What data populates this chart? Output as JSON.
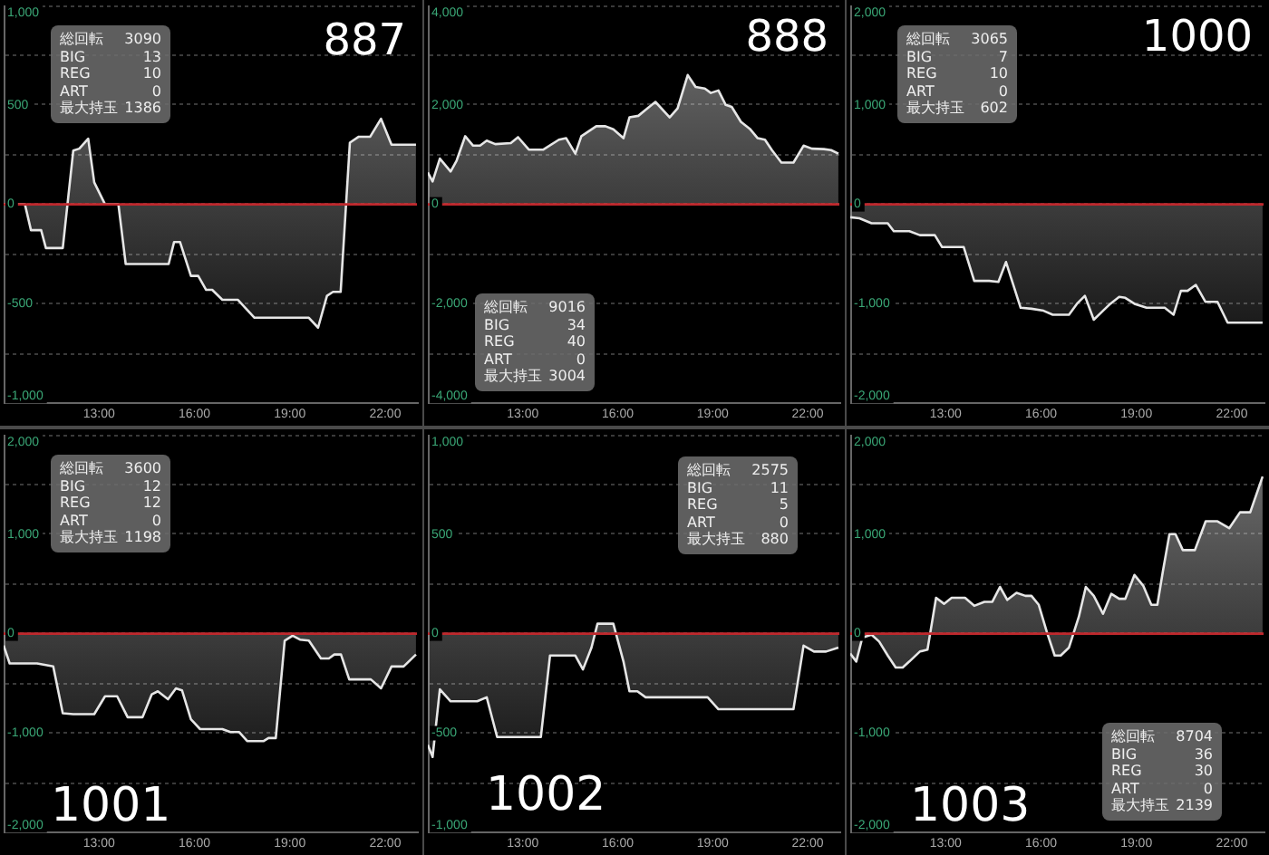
{
  "chart_data": [
    {
      "type": "area",
      "title": "887",
      "color": "#e6e6e6",
      "grid": "y",
      "xlim": [
        10,
        23
      ],
      "xticks": [
        {
          "value": 13,
          "label": "13:00"
        },
        {
          "value": 16,
          "label": "16:00"
        },
        {
          "value": 19,
          "label": "19:00"
        },
        {
          "value": 22,
          "label": "22:00"
        }
      ],
      "ylim": [
        -1000,
        1000
      ],
      "yticks": [
        {
          "value": -1000,
          "label": "-1,000"
        },
        {
          "value": -750,
          "label": null
        },
        -500,
        {
          "value": -250,
          "label": null
        },
        0,
        {
          "value": 250,
          "label": null
        },
        500,
        {
          "value": 750,
          "label": null
        },
        {
          "value": 1000,
          "label": "1,000"
        }
      ],
      "ref_lines": [
        {
          "axis": "y",
          "value": 0,
          "color": "#c0282d"
        }
      ],
      "annotations": [
        "総回転 3090",
        "BIG 13",
        "REG 10",
        "ART 0",
        "最大持玉 1386"
      ],
      "x": [
        10,
        10.67,
        10.86,
        11.18,
        11.33,
        11.86,
        12.19,
        12.38,
        12.66,
        12.85,
        13.19,
        13.61,
        13.84,
        15.19,
        15.36,
        15.55,
        15.89,
        16.12,
        16.37,
        16.56,
        16.88,
        17.37,
        17.89,
        19.6,
        19.89,
        20.17,
        20.36,
        20.6,
        20.89,
        21.17,
        21.53,
        21.87,
        22.2,
        22.97
      ],
      "values": [
        0,
        0,
        -130,
        -130,
        -220,
        -220,
        270,
        280,
        330,
        110,
        0,
        0,
        -300,
        -300,
        -190,
        -190,
        -360,
        -360,
        -430,
        -430,
        -480,
        -480,
        -570,
        -570,
        -620,
        -460,
        -440,
        -440,
        310,
        340,
        340,
        430,
        300,
        300
      ]
    },
    {
      "type": "area",
      "title": "888",
      "color": "#e6e6e6",
      "grid": "y",
      "xlim": [
        10,
        23
      ],
      "xticks": [
        {
          "value": 13,
          "label": "13:00"
        },
        {
          "value": 16,
          "label": "16:00"
        },
        {
          "value": 19,
          "label": "19:00"
        },
        {
          "value": 22,
          "label": "22:00"
        }
      ],
      "ylim": [
        -4000,
        4000
      ],
      "yticks": [
        {
          "value": -4000,
          "label": "-4,000"
        },
        {
          "value": -3000,
          "label": null
        },
        {
          "value": -2000,
          "label": "-2,000"
        },
        {
          "value": -1000,
          "label": null
        },
        0,
        {
          "value": 1000,
          "label": null
        },
        {
          "value": 2000,
          "label": "2,000"
        },
        {
          "value": 3000,
          "label": null
        },
        {
          "value": 4000,
          "label": "4,000"
        }
      ],
      "ref_lines": [
        {
          "axis": "y",
          "value": 0,
          "color": "#c0282d"
        }
      ],
      "annotations": [
        "総回転 9016",
        "BIG 34",
        "REG 40",
        "ART 0",
        "最大持玉 3004"
      ],
      "x": [
        10,
        10.15,
        10.38,
        10.72,
        10.91,
        11.18,
        11.43,
        11.65,
        11.86,
        12.13,
        12.62,
        12.85,
        13.19,
        13.65,
        14.14,
        14.37,
        14.66,
        14.85,
        15.32,
        15.61,
        15.86,
        16.18,
        16.37,
        16.65,
        16.88,
        17.19,
        17.64,
        17.89,
        18.21,
        18.46,
        18.75,
        18.94,
        19.18,
        19.41,
        19.6,
        19.89,
        20.17,
        20.42,
        20.65,
        20.87,
        21.17,
        21.55,
        21.87,
        22.13,
        22.51,
        22.74,
        22.97
      ],
      "values": [
        640,
        460,
        920,
        660,
        880,
        1370,
        1180,
        1180,
        1280,
        1210,
        1230,
        1350,
        1100,
        1100,
        1300,
        1330,
        1020,
        1370,
        1570,
        1570,
        1510,
        1330,
        1750,
        1780,
        1900,
        2060,
        1750,
        1930,
        2600,
        2360,
        2330,
        2240,
        2290,
        2000,
        1960,
        1660,
        1520,
        1330,
        1300,
        1090,
        840,
        840,
        1180,
        1120,
        1110,
        1090,
        1020
      ]
    },
    {
      "type": "area",
      "title": "1000",
      "color": "#e6e6e6",
      "grid": "y",
      "xlim": [
        10,
        23
      ],
      "xticks": [
        {
          "value": 13,
          "label": "13:00"
        },
        {
          "value": 16,
          "label": "16:00"
        },
        {
          "value": 19,
          "label": "19:00"
        },
        {
          "value": 22,
          "label": "22:00"
        }
      ],
      "ylim": [
        -2000,
        2000
      ],
      "yticks": [
        {
          "value": -2000,
          "label": "-2,000"
        },
        {
          "value": -1500,
          "label": null
        },
        {
          "value": -1000,
          "label": "-1,000"
        },
        {
          "value": -500,
          "label": null
        },
        0,
        {
          "value": 500,
          "label": null
        },
        {
          "value": 1000,
          "label": "1,000"
        },
        {
          "value": 1500,
          "label": null
        },
        {
          "value": 2000,
          "label": "2,000"
        }
      ],
      "ref_lines": [
        {
          "axis": "y",
          "value": 0,
          "color": "#c0282d"
        }
      ],
      "annotations": [
        "総回転 3065",
        "BIG 7",
        "REG 10",
        "ART 0",
        "最大持玉 602"
      ],
      "x": [
        10,
        10.29,
        10.67,
        11.18,
        11.37,
        11.86,
        12.19,
        12.66,
        12.89,
        13.57,
        13.9,
        14.37,
        14.66,
        14.9,
        15.36,
        15.7,
        16.08,
        16.37,
        16.88,
        17.13,
        17.38,
        17.66,
        17.95,
        18.18,
        18.46,
        18.65,
        18.94,
        19.32,
        19.89,
        20.17,
        20.4,
        20.61,
        20.87,
        21.17,
        21.55,
        21.87,
        22.97
      ],
      "values": [
        -130,
        -140,
        -190,
        -190,
        -270,
        -270,
        -310,
        -310,
        -430,
        -430,
        -770,
        -770,
        -780,
        -580,
        -1040,
        -1050,
        -1070,
        -1110,
        -1110,
        -1000,
        -920,
        -1160,
        -1070,
        -1000,
        -930,
        -940,
        -1000,
        -1040,
        -1040,
        -1110,
        -870,
        -870,
        -810,
        -980,
        -980,
        -1190,
        -1190
      ]
    },
    {
      "type": "area",
      "title": "1001",
      "color": "#e6e6e6",
      "grid": "y",
      "xlim": [
        10,
        23
      ],
      "xticks": [
        {
          "value": 13,
          "label": "13:00"
        },
        {
          "value": 16,
          "label": "16:00"
        },
        {
          "value": 19,
          "label": "19:00"
        },
        {
          "value": 22,
          "label": "22:00"
        }
      ],
      "ylim": [
        -2000,
        2000
      ],
      "yticks": [
        {
          "value": -2000,
          "label": "-2,000"
        },
        {
          "value": -1500,
          "label": null
        },
        {
          "value": -1000,
          "label": "-1,000"
        },
        {
          "value": -500,
          "label": null
        },
        0,
        {
          "value": 500,
          "label": null
        },
        {
          "value": 1000,
          "label": "1,000"
        },
        {
          "value": 1500,
          "label": null
        },
        {
          "value": 2000,
          "label": "2,000"
        }
      ],
      "ref_lines": [
        {
          "axis": "y",
          "value": 0,
          "color": "#c0282d"
        }
      ],
      "annotations": [
        "総回転 3600",
        "BIG 12",
        "REG 12",
        "ART 0",
        "最大持玉 1198"
      ],
      "x": [
        10,
        10.19,
        11.05,
        11.56,
        11.86,
        12.19,
        12.85,
        13.19,
        13.57,
        13.9,
        14.37,
        14.66,
        14.85,
        15.17,
        15.42,
        15.61,
        15.89,
        16.18,
        16.88,
        17.13,
        17.41,
        17.66,
        18.18,
        18.33,
        18.56,
        18.84,
        19.09,
        19.32,
        19.6,
        19.98,
        20.23,
        20.4,
        20.61,
        20.87,
        21.55,
        21.87,
        22.2,
        22.58,
        22.97
      ],
      "values": [
        -120,
        -300,
        -300,
        -330,
        -800,
        -810,
        -810,
        -630,
        -630,
        -840,
        -840,
        -610,
        -580,
        -660,
        -550,
        -570,
        -860,
        -960,
        -960,
        -990,
        -990,
        -1080,
        -1080,
        -1050,
        -1050,
        -70,
        -20,
        -60,
        -70,
        -250,
        -250,
        -210,
        -210,
        -460,
        -460,
        -550,
        -330,
        -330,
        -210
      ]
    },
    {
      "type": "area",
      "title": "1002",
      "color": "#e6e6e6",
      "grid": "y",
      "xlim": [
        10,
        23
      ],
      "xticks": [
        {
          "value": 13,
          "label": "13:00"
        },
        {
          "value": 16,
          "label": "16:00"
        },
        {
          "value": 19,
          "label": "19:00"
        },
        {
          "value": 22,
          "label": "22:00"
        }
      ],
      "ylim": [
        -1000,
        1000
      ],
      "yticks": [
        {
          "value": -1000,
          "label": "-1,000"
        },
        {
          "value": -750,
          "label": null
        },
        -500,
        {
          "value": -250,
          "label": null
        },
        0,
        {
          "value": 250,
          "label": null
        },
        500,
        {
          "value": 750,
          "label": null
        },
        {
          "value": 1000,
          "label": "1,000"
        }
      ],
      "ref_lines": [
        {
          "axis": "y",
          "value": 0,
          "color": "#c0282d"
        }
      ],
      "annotations": [
        "総回転 2575",
        "BIG 11",
        "REG 5",
        "ART 0",
        "最大持玉 880"
      ],
      "x": [
        10,
        10.15,
        10.38,
        10.72,
        11.56,
        11.86,
        12.19,
        13.57,
        13.86,
        14.66,
        14.9,
        15.17,
        15.36,
        15.86,
        16.18,
        16.37,
        16.62,
        16.88,
        18.84,
        19.18,
        21.55,
        21.87,
        22.2,
        22.58,
        22.97
      ],
      "values": [
        -560,
        -620,
        -280,
        -340,
        -340,
        -320,
        -520,
        -520,
        -110,
        -110,
        -180,
        -70,
        50,
        50,
        -140,
        -290,
        -290,
        -320,
        -320,
        -380,
        -380,
        -60,
        -90,
        -90,
        -70
      ]
    },
    {
      "type": "area",
      "title": "1003",
      "color": "#e6e6e6",
      "grid": "y",
      "xlim": [
        10,
        23
      ],
      "xticks": [
        {
          "value": 13,
          "label": "13:00"
        },
        {
          "value": 16,
          "label": "16:00"
        },
        {
          "value": 19,
          "label": "19:00"
        },
        {
          "value": 22,
          "label": "22:00"
        }
      ],
      "ylim": [
        -2000,
        2000
      ],
      "yticks": [
        {
          "value": -2000,
          "label": "-2,000"
        },
        {
          "value": -1500,
          "label": null
        },
        {
          "value": -1000,
          "label": "-1,000"
        },
        {
          "value": -500,
          "label": null
        },
        0,
        {
          "value": 500,
          "label": null
        },
        {
          "value": 1000,
          "label": "1,000"
        },
        {
          "value": 1500,
          "label": null
        },
        {
          "value": 2000,
          "label": "2,000"
        }
      ],
      "ref_lines": [
        {
          "axis": "y",
          "value": 0,
          "color": "#c0282d"
        }
      ],
      "annotations": [
        "総回転 8704",
        "BIG 36",
        "REG 30",
        "ART 0",
        "最大持玉 2139"
      ],
      "x": [
        10,
        10.19,
        10.38,
        10.67,
        10.91,
        11.18,
        11.43,
        11.65,
        11.86,
        12.19,
        12.43,
        12.7,
        12.95,
        13.19,
        13.61,
        13.9,
        14.22,
        14.47,
        14.71,
        14.94,
        15.23,
        15.51,
        15.7,
        15.93,
        16.18,
        16.43,
        16.62,
        16.88,
        17.19,
        17.41,
        17.66,
        17.95,
        18.21,
        18.46,
        18.65,
        18.94,
        19.22,
        19.47,
        19.66,
        19.83,
        20.04,
        20.23,
        20.46,
        20.84,
        21.18,
        21.55,
        21.92,
        22.26,
        22.58,
        22.97
      ],
      "values": [
        -200,
        -280,
        -40,
        -10,
        -80,
        -220,
        -340,
        -340,
        -280,
        -180,
        -160,
        360,
        300,
        360,
        360,
        280,
        320,
        320,
        470,
        340,
        410,
        380,
        380,
        290,
        20,
        -220,
        -220,
        -140,
        170,
        470,
        380,
        200,
        400,
        350,
        350,
        590,
        480,
        290,
        290,
        620,
        1000,
        1000,
        840,
        840,
        1130,
        1130,
        1060,
        1220,
        1220,
        1580
      ]
    }
  ]
}
